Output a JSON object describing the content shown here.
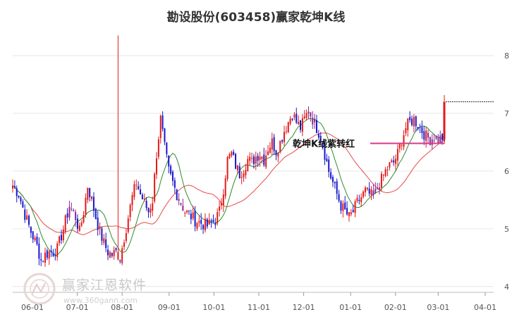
{
  "chart_data": {
    "type": "candlestick",
    "title": "勘设股份(603458)赢家乾坤K线",
    "y_ticks": [
      4,
      5,
      6,
      7,
      8
    ],
    "ylim": [
      3.9,
      8.5
    ],
    "x_ticks": [
      "06-01",
      "07-01",
      "08-01",
      "09-01",
      "10-01",
      "11-01",
      "12-01",
      "01-01",
      "02-01",
      "03-01",
      "04-01"
    ],
    "annotation": "乾坤K线紫转红",
    "last_close": 7.2,
    "series_close_points": [
      [
        0,
        5.75
      ],
      [
        3,
        5.6
      ],
      [
        6,
        5.25
      ],
      [
        9,
        4.95
      ],
      [
        12,
        4.7
      ],
      [
        14,
        4.45
      ],
      [
        16,
        4.55
      ],
      [
        18,
        4.6
      ],
      [
        20,
        4.6
      ],
      [
        22,
        4.65
      ],
      [
        25,
        5.0
      ],
      [
        28,
        5.4
      ],
      [
        31,
        5.2
      ],
      [
        33,
        4.95
      ],
      [
        35,
        5.3
      ],
      [
        37,
        5.75
      ],
      [
        39,
        5.5
      ],
      [
        41,
        5.2
      ],
      [
        43,
        4.95
      ],
      [
        45,
        4.75
      ],
      [
        47,
        4.6
      ],
      [
        49,
        4.55
      ],
      [
        51,
        4.6
      ],
      [
        53,
        4.5
      ],
      [
        55,
        4.85
      ],
      [
        57,
        5.2
      ],
      [
        59,
        5.55
      ],
      [
        61,
        5.8
      ],
      [
        63,
        5.6
      ],
      [
        65,
        5.45
      ],
      [
        67,
        5.3
      ],
      [
        69,
        5.5
      ],
      [
        71,
        6.3
      ],
      [
        73,
        6.9
      ],
      [
        75,
        6.4
      ],
      [
        77,
        6.0
      ],
      [
        79,
        5.8
      ],
      [
        81,
        5.6
      ],
      [
        83,
        5.45
      ],
      [
        85,
        5.3
      ],
      [
        87,
        5.25
      ],
      [
        90,
        5.15
      ],
      [
        93,
        5.1
      ],
      [
        96,
        5.05
      ],
      [
        98,
        5.1
      ],
      [
        100,
        5.15
      ],
      [
        102,
        5.3
      ],
      [
        104,
        5.7
      ],
      [
        106,
        6.2
      ],
      [
        108,
        6.3
      ],
      [
        110,
        6.1
      ],
      [
        112,
        5.95
      ],
      [
        114,
        6.05
      ],
      [
        116,
        6.2
      ],
      [
        118,
        6.15
      ],
      [
        120,
        6.25
      ],
      [
        122,
        6.3
      ],
      [
        124,
        6.2
      ],
      [
        126,
        6.4
      ],
      [
        128,
        6.5
      ],
      [
        130,
        6.35
      ],
      [
        132,
        6.5
      ],
      [
        134,
        6.7
      ],
      [
        136,
        6.85
      ],
      [
        138,
        7.0
      ],
      [
        140,
        6.85
      ],
      [
        142,
        6.75
      ],
      [
        144,
        6.9
      ],
      [
        146,
        7.05
      ],
      [
        148,
        6.9
      ],
      [
        150,
        6.75
      ],
      [
        152,
        6.6
      ],
      [
        154,
        6.3
      ],
      [
        156,
        6.0
      ],
      [
        158,
        5.8
      ],
      [
        160,
        5.6
      ],
      [
        162,
        5.4
      ],
      [
        164,
        5.3
      ],
      [
        166,
        5.2
      ],
      [
        168,
        5.3
      ],
      [
        170,
        5.45
      ],
      [
        172,
        5.55
      ],
      [
        174,
        5.65
      ],
      [
        176,
        5.6
      ],
      [
        178,
        5.55
      ],
      [
        180,
        5.7
      ],
      [
        182,
        5.85
      ],
      [
        184,
        6.0
      ],
      [
        186,
        6.1
      ],
      [
        188,
        6.15
      ],
      [
        190,
        6.3
      ],
      [
        192,
        6.55
      ],
      [
        194,
        6.75
      ],
      [
        196,
        6.85
      ],
      [
        198,
        6.9
      ],
      [
        200,
        6.8
      ],
      [
        202,
        6.7
      ],
      [
        204,
        6.6
      ],
      [
        206,
        6.55
      ],
      [
        208,
        6.6
      ],
      [
        210,
        6.55
      ],
      [
        212,
        6.58
      ],
      [
        213,
        7.2
      ]
    ],
    "spike_bar": {
      "index": 52,
      "high": 8.35,
      "low": 7.2
    },
    "colors": {
      "up": "#e31a1a",
      "down": "#1818cc",
      "purple": "#8a2b90",
      "ma_short": "#2e8b2e",
      "ma_long": "#e84a4a",
      "annotation_line": "#d63a8a",
      "grid": "#e6e6e6",
      "axis_text": "#555555",
      "title": "#333333"
    }
  },
  "watermark": {
    "name": "赢家江恩软件",
    "url": "www.360gann.com"
  }
}
